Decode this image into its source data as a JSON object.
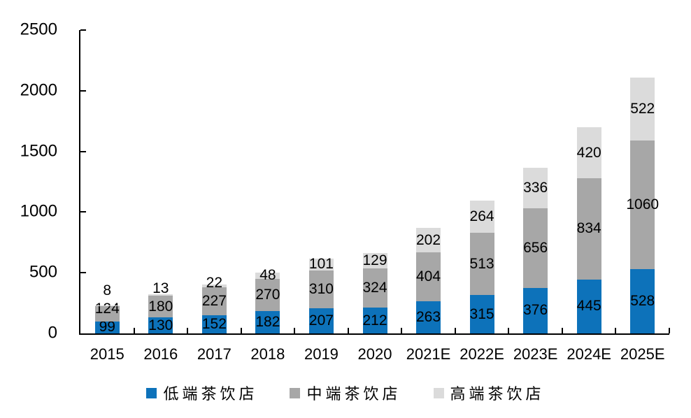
{
  "chart_data": {
    "type": "bar",
    "stacked": true,
    "title": "",
    "xlabel": "",
    "ylabel": "",
    "categories": [
      "2015",
      "2016",
      "2017",
      "2018",
      "2019",
      "2020",
      "2021E",
      "2022E",
      "2023E",
      "2024E",
      "2025E"
    ],
    "series": [
      {
        "name": "低端茶饮店",
        "color": "#0D72BA",
        "values": [
          99,
          130,
          152,
          182,
          207,
          212,
          263,
          315,
          376,
          445,
          528
        ]
      },
      {
        "name": "中端茶饮店",
        "color": "#A7A7A7",
        "values": [
          124,
          180,
          227,
          270,
          310,
          324,
          404,
          513,
          656,
          834,
          1060
        ]
      },
      {
        "name": "高端茶饮店",
        "color": "#DBDBDB",
        "values": [
          8,
          13,
          22,
          48,
          101,
          129,
          202,
          264,
          336,
          420,
          522
        ]
      }
    ],
    "ylim": [
      0,
      2500
    ],
    "yticks": [
      0,
      500,
      1000,
      1500,
      2000,
      2500
    ],
    "grid": false,
    "legend_position": "bottom",
    "axis_color": "#000000",
    "label_color": "#000000"
  }
}
